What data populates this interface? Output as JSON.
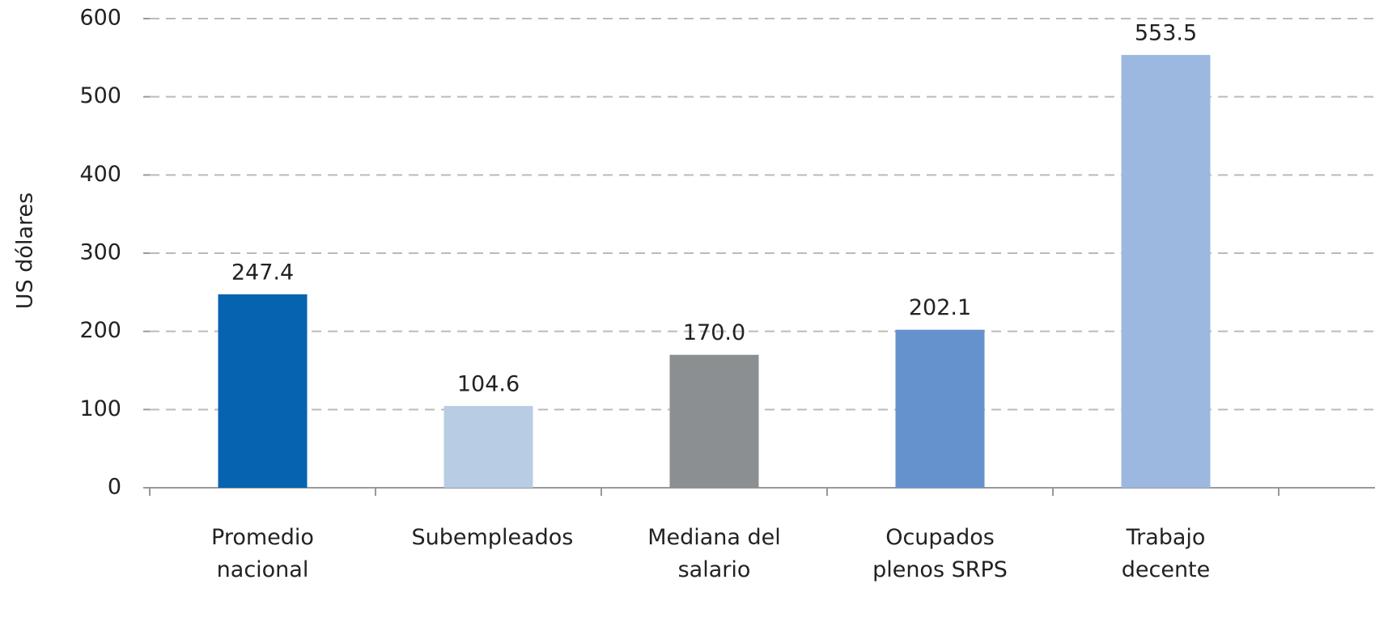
{
  "chart_data": {
    "type": "bar",
    "y_label": "US dólares",
    "categories": [
      "Promedio nacional",
      "Subempleados",
      "Mediana del salario",
      "Ocupados plenos SRPS",
      "Trabajo decente"
    ],
    "values": [
      247.4,
      104.6,
      170.0,
      202.1,
      553.5
    ],
    "value_labels": [
      "247.4",
      "104.6",
      "170.0",
      "202.1",
      "553.5"
    ],
    "colors": [
      "#0563b0",
      "#b8cce4",
      "#8c8f91",
      "#6592cc",
      "#9db8e0"
    ],
    "ylim": [
      0,
      600
    ],
    "yticks": [
      0,
      100,
      200,
      300,
      400,
      500,
      600
    ],
    "grid": true
  }
}
